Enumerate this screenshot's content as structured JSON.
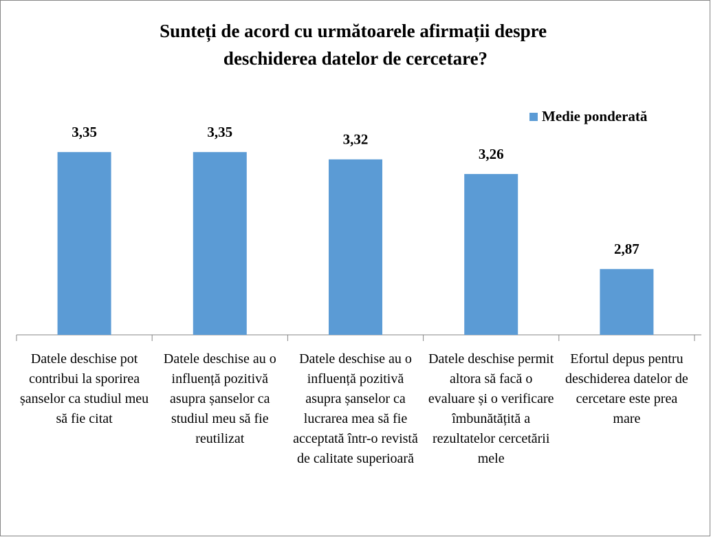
{
  "chart_data": {
    "type": "bar",
    "title": "Sunteți de acord cu următoarele afirmații despre deschiderea datelor de cercetare?",
    "categories": [
      "Datele deschise pot contribui la sporirea șanselor ca studiul meu să fie citat",
      "Datele deschise au o influență pozitivă asupra șanselor ca studiul meu să fie reutilizat",
      "Datele deschise au o influență pozitivă asupra șanselor ca lucrarea mea să fie acceptată într-o revistă de calitate superioară",
      "Datele deschise permit altora să facă o evaluare și o verificare îmbunătățită a rezultatelor cercetării mele",
      "Efortul depus pentru deschiderea datelor de cercetare este prea mare"
    ],
    "series": [
      {
        "name": "Medie ponderată",
        "color": "#5b9bd5",
        "values": [
          3.35,
          3.35,
          3.32,
          3.26,
          2.87
        ],
        "value_labels": [
          "3,35",
          "3,35",
          "3,32",
          "3,26",
          "2,87"
        ]
      }
    ],
    "ylim": [
      2.6,
      3.5
    ],
    "legend": "top-right"
  }
}
